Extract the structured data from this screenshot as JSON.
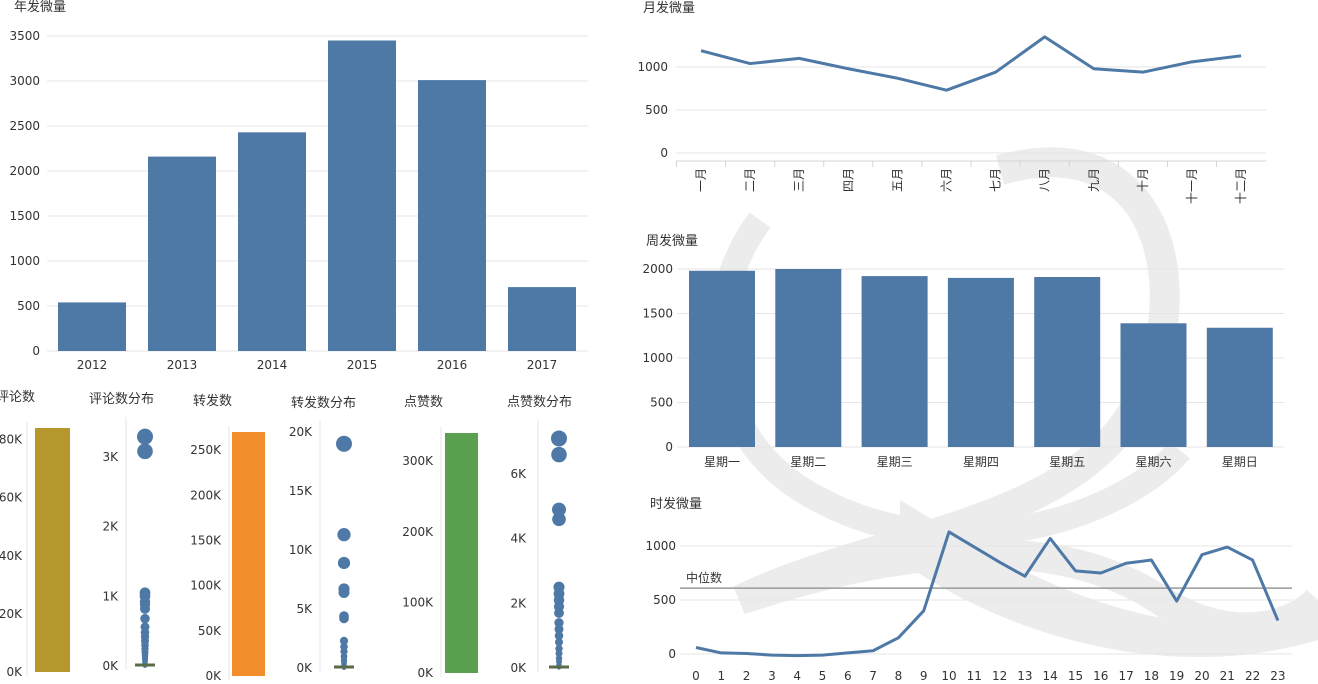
{
  "colors": {
    "blue": "#4e79a7",
    "comment": "#b5972e",
    "repost": "#f28e2b",
    "like": "#59a14f",
    "grid": "#e6e6e6",
    "axis": "#d4d4d4",
    "text": "#333333",
    "median": "#9a9a9a"
  },
  "chart_data": [
    {
      "id": "yearly",
      "type": "bar",
      "title": "年发微量",
      "categories": [
        "2012",
        "2013",
        "2014",
        "2015",
        "2016",
        "2017"
      ],
      "values": [
        540,
        2160,
        2430,
        3450,
        3010,
        710
      ],
      "ylim": [
        0,
        3500
      ],
      "yticks": [
        0,
        500,
        1000,
        1500,
        2000,
        2500,
        3000,
        3500
      ],
      "ytick_labels": [
        "0",
        "500",
        "1000",
        "1500",
        "2000",
        "2500",
        "3000",
        "3500"
      ],
      "grid": true
    },
    {
      "id": "monthly",
      "type": "line",
      "title": "月发微量",
      "categories": [
        "一月",
        "二月",
        "三月",
        "四月",
        "五月",
        "六月",
        "七月",
        "八月",
        "九月",
        "十月",
        "十一月",
        "十二月"
      ],
      "values": [
        1190,
        1040,
        1100,
        980,
        870,
        730,
        940,
        1350,
        980,
        940,
        1060,
        1130
      ],
      "ylim": [
        0,
        1350
      ],
      "yticks": [
        0,
        500,
        1000
      ],
      "ytick_labels": [
        "0",
        "500",
        "1000"
      ],
      "grid": true
    },
    {
      "id": "weekly",
      "type": "bar",
      "title": "周发微量",
      "categories": [
        "星期一",
        "星期二",
        "星期三",
        "星期四",
        "星期五",
        "星期六",
        "星期日"
      ],
      "values": [
        1980,
        2000,
        1920,
        1900,
        1910,
        1390,
        1340
      ],
      "ylim": [
        0,
        2000
      ],
      "yticks": [
        0,
        500,
        1000,
        1500,
        2000
      ],
      "ytick_labels": [
        "0",
        "500",
        "1000",
        "1500",
        "2000"
      ],
      "grid": true
    },
    {
      "id": "hourly",
      "type": "line",
      "title": "时发微量",
      "categories": [
        "0",
        "1",
        "2",
        "3",
        "4",
        "5",
        "6",
        "7",
        "8",
        "9",
        "10",
        "11",
        "12",
        "13",
        "14",
        "15",
        "16",
        "17",
        "18",
        "19",
        "20",
        "21",
        "22",
        "23"
      ],
      "values": [
        60,
        10,
        5,
        -10,
        -15,
        -10,
        10,
        30,
        150,
        400,
        1130,
        990,
        850,
        720,
        1070,
        770,
        750,
        840,
        870,
        490,
        920,
        990,
        870,
        310
      ],
      "ylim": [
        0,
        1000
      ],
      "yticks": [
        0,
        500,
        1000
      ],
      "ytick_labels": [
        "0",
        "500",
        "1000"
      ],
      "grid": true,
      "reference_line": {
        "label": "中位数",
        "value": 610
      }
    },
    {
      "id": "comments_total",
      "type": "bar",
      "title": "评论数",
      "values": [
        84000
      ],
      "ylim": [
        0,
        84000
      ],
      "yticks": [
        0,
        20000,
        40000,
        60000,
        80000
      ],
      "ytick_labels": [
        "0K",
        "20K",
        "40K",
        "60K",
        "80K"
      ]
    },
    {
      "id": "comments_dist",
      "type": "scatter",
      "title": "评论数分布",
      "values": [
        3290,
        3080,
        1050,
        1000,
        920,
        880,
        820,
        680,
        560,
        480,
        420,
        360,
        300,
        250,
        200,
        160,
        120,
        90,
        60,
        40,
        25,
        15,
        8,
        4
      ],
      "ylim": [
        0,
        3400
      ],
      "yticks": [
        0,
        1000,
        2000,
        3000
      ],
      "ytick_labels": [
        "0K",
        "1K",
        "2K",
        "3K"
      ]
    },
    {
      "id": "reposts_total",
      "type": "bar",
      "title": "转发数",
      "values": [
        270000
      ],
      "ylim": [
        0,
        270000
      ],
      "yticks": [
        0,
        50000,
        100000,
        150000,
        200000,
        250000
      ],
      "ytick_labels": [
        "0K",
        "50K",
        "100K",
        "150K",
        "200K",
        "250K"
      ]
    },
    {
      "id": "reposts_dist",
      "type": "scatter",
      "title": "转发数分布",
      "values": [
        19000,
        11300,
        8900,
        6700,
        6400,
        4400,
        4200,
        2300,
        1800,
        1400,
        1000,
        700,
        500,
        300,
        150,
        60,
        20
      ],
      "ylim": [
        0,
        20000
      ],
      "yticks": [
        0,
        5000,
        10000,
        15000,
        20000
      ],
      "ytick_labels": [
        "0K",
        "5K",
        "10K",
        "15K",
        "20K"
      ]
    },
    {
      "id": "likes_total",
      "type": "bar",
      "title": "点赞数",
      "values": [
        340000
      ],
      "ylim": [
        0,
        340000
      ],
      "yticks": [
        0,
        100000,
        200000,
        300000
      ],
      "ytick_labels": [
        "0K",
        "100K",
        "200K",
        "300K"
      ]
    },
    {
      "id": "likes_dist",
      "type": "scatter",
      "title": "点赞数分布",
      "values": [
        7100,
        6600,
        4900,
        4600,
        2500,
        2300,
        2100,
        1900,
        1700,
        1400,
        1200,
        1000,
        800,
        600,
        450,
        300,
        200,
        100,
        50,
        20
      ],
      "ylim": [
        0,
        7300
      ],
      "yticks": [
        0,
        2000,
        4000,
        6000
      ],
      "ytick_labels": [
        "0K",
        "2K",
        "4K",
        "6K"
      ]
    }
  ]
}
